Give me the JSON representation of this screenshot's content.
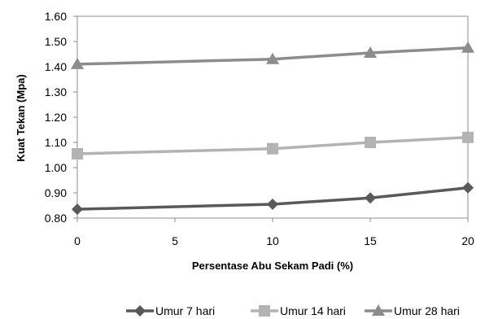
{
  "chart_data": {
    "type": "line",
    "title": "",
    "xlabel": "Persentase Abu Sekam Padi (%)",
    "ylabel": "Kuat Tekan (Mpa)",
    "xlim": [
      0,
      20
    ],
    "ylim": [
      0.8,
      1.6
    ],
    "x_ticks": [
      "0",
      "5",
      "10",
      "15",
      "20"
    ],
    "y_ticks": [
      "0.80",
      "0.90",
      "1.00",
      "1.10",
      "1.20",
      "1.30",
      "1.40",
      "1.50",
      "1.60"
    ],
    "grid": false,
    "legend_position": "bottom",
    "series": [
      {
        "name": "Umur 7 hari",
        "marker": "diamond",
        "color": "#595959",
        "x": [
          0,
          10,
          15,
          20
        ],
        "values": [
          0.835,
          0.855,
          0.88,
          0.92
        ]
      },
      {
        "name": "Umur 14 hari",
        "marker": "square",
        "color": "#b3b3b3",
        "x": [
          0,
          10,
          15,
          20
        ],
        "values": [
          1.055,
          1.075,
          1.1,
          1.12
        ]
      },
      {
        "name": "Umur 28 hari",
        "marker": "triangle",
        "color": "#8c8c8c",
        "x": [
          0,
          10,
          15,
          20
        ],
        "values": [
          1.41,
          1.43,
          1.455,
          1.475
        ]
      }
    ]
  }
}
